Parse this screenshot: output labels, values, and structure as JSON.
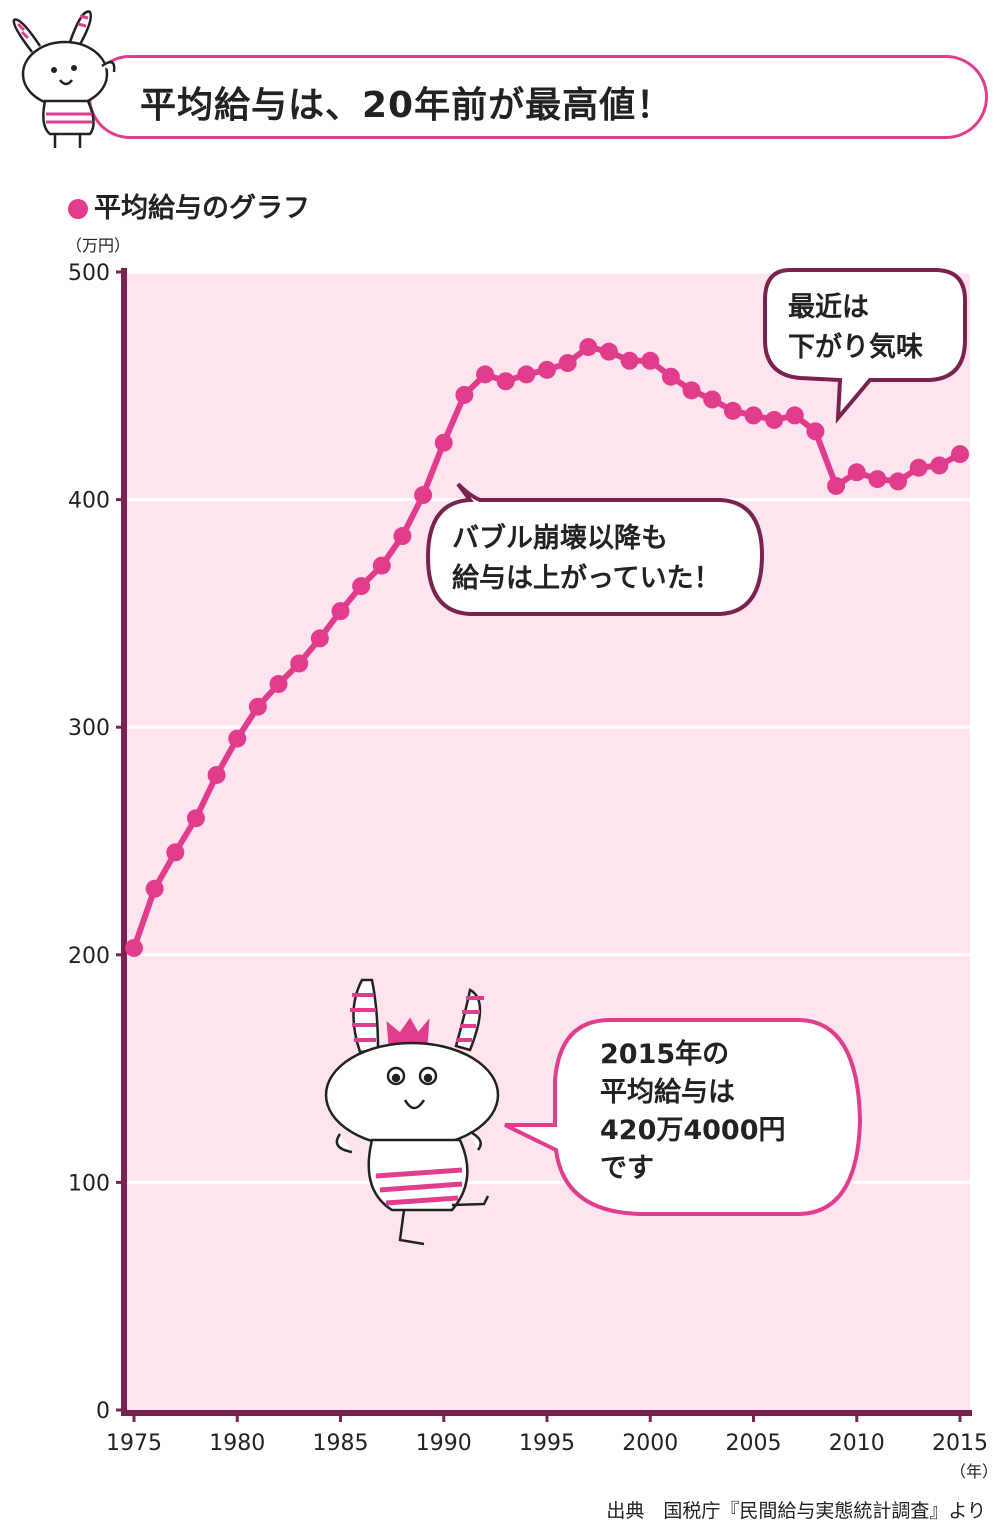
{
  "header": {
    "title": "平均給与は、20年前が最高値！"
  },
  "subtitle": "平均給与のグラフ",
  "unit_y": "（万円）",
  "unit_x": "（年）",
  "source": "出典　国税庁『民間給与実態統計調査』より",
  "colors": {
    "accent": "#e23c8c",
    "plot_bg": "#fde4ee",
    "axis": "#7a2350",
    "bubble_dark": "#7a2350"
  },
  "bubbles": {
    "recent": [
      "最近は",
      "下がり気味"
    ],
    "bubble_era": [
      "バブル崩壊以降も",
      "給与は上がっていた！"
    ],
    "y2015": [
      "2015年の",
      "平均給与は",
      "420万4000円",
      "です"
    ]
  },
  "chart_data": {
    "type": "line",
    "ylim": [
      0,
      500
    ],
    "xlim": [
      1975,
      2015
    ],
    "y_ticks": [
      0,
      100,
      200,
      300,
      400,
      500
    ],
    "x_ticks": [
      1975,
      1980,
      1985,
      1990,
      1995,
      2000,
      2005,
      2010,
      2015
    ],
    "grid": true,
    "x": [
      1975,
      1976,
      1977,
      1978,
      1979,
      1980,
      1981,
      1982,
      1983,
      1984,
      1985,
      1986,
      1987,
      1988,
      1989,
      1990,
      1991,
      1992,
      1993,
      1994,
      1995,
      1996,
      1997,
      1998,
      1999,
      2000,
      2001,
      2002,
      2003,
      2004,
      2005,
      2006,
      2007,
      2008,
      2009,
      2010,
      2011,
      2012,
      2013,
      2014,
      2015
    ],
    "values": [
      203,
      229,
      245,
      260,
      279,
      295,
      309,
      319,
      328,
      339,
      351,
      362,
      371,
      384,
      402,
      425,
      446,
      455,
      452,
      455,
      457,
      460,
      467,
      465,
      461,
      461,
      454,
      448,
      444,
      439,
      437,
      435,
      437,
      430,
      406,
      412,
      409,
      408,
      414,
      415,
      420
    ]
  }
}
